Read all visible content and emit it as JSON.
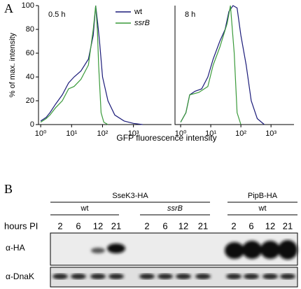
{
  "panel_a": {
    "label": "A"
  },
  "chart_data": [
    {
      "type": "line",
      "annotation": "0.5 h",
      "ylabel": "% of max. intensity",
      "xlabel": "GFP fluorescence intensity",
      "xscale": "log",
      "xlim": [
        0.85,
        17000
      ],
      "ylim": [
        0,
        100
      ],
      "xticks": [
        {
          "value": 1,
          "label": "10⁰"
        },
        {
          "value": 10,
          "label": "10¹"
        },
        {
          "value": 100,
          "label": "10²"
        },
        {
          "value": 1000,
          "label": "10³"
        }
      ],
      "yticks": [
        0,
        20,
        40,
        60,
        80,
        100
      ],
      "legend": "upper right",
      "series": [
        {
          "name": "wt",
          "color": "#1c1c7a",
          "x": [
            1,
            1.5,
            2,
            3,
            5,
            8,
            12,
            20,
            35,
            50,
            60,
            70,
            80,
            100,
            150,
            250,
            500,
            1000,
            2000
          ],
          "values": [
            3,
            6,
            10,
            17,
            25,
            35,
            40,
            45,
            55,
            75,
            100,
            85,
            70,
            40,
            20,
            8,
            3,
            1,
            0
          ]
        },
        {
          "name": "ssrB",
          "color": "#3a9a3a",
          "x": [
            1,
            1.5,
            2,
            3,
            5,
            8,
            12,
            20,
            35,
            50,
            60,
            68,
            75,
            90,
            110,
            150
          ],
          "values": [
            2,
            5,
            8,
            14,
            20,
            30,
            32,
            38,
            50,
            80,
            100,
            80,
            50,
            10,
            2,
            0
          ]
        }
      ]
    },
    {
      "type": "line",
      "annotation": "8 h",
      "xscale": "log",
      "xlim": [
        0.65,
        5800
      ],
      "ylim": [
        0,
        100
      ],
      "xticks": [
        {
          "value": 1,
          "label": "10⁰"
        },
        {
          "value": 10,
          "label": "10¹"
        },
        {
          "value": 100,
          "label": "10²"
        },
        {
          "value": 1000,
          "label": "10³"
        }
      ],
      "series": [
        {
          "color": "#1c1c7a",
          "x": [
            1,
            1.5,
            2,
            3,
            5,
            8,
            12,
            20,
            30,
            40,
            55,
            75,
            100,
            150,
            220,
            350,
            600
          ],
          "values": [
            2,
            10,
            25,
            28,
            30,
            40,
            55,
            70,
            80,
            95,
            100,
            98,
            75,
            50,
            20,
            5,
            0
          ]
        },
        {
          "color": "#3a9a3a",
          "x": [
            1,
            1.5,
            2,
            4,
            8,
            12,
            20,
            35,
            45,
            60,
            75,
            100
          ],
          "values": [
            2,
            10,
            25,
            27,
            32,
            50,
            65,
            85,
            100,
            60,
            10,
            0
          ]
        }
      ]
    }
  ],
  "blot": {
    "label": "B",
    "groups": [
      {
        "name": "SseK3-HA",
        "strains": [
          "wt",
          "ssrB"
        ]
      },
      {
        "name": "PipB-HA",
        "strains": [
          "wt"
        ]
      }
    ],
    "row_label": "hours PI",
    "hours": [
      "2",
      "6",
      "12",
      "21",
      "2",
      "6",
      "12",
      "21",
      "2",
      "6",
      "12",
      "21"
    ],
    "antibodies": [
      "α-HA",
      "α-DnaK"
    ]
  }
}
